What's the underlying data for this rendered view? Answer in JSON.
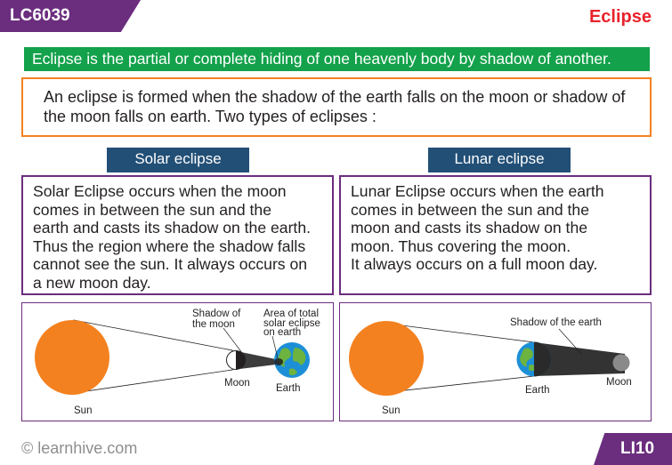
{
  "header": {
    "code": "LC6039",
    "topic": "Eclipse"
  },
  "definition": "Eclipse is the partial or complete hiding of one heavenly body by shadow of another.",
  "intro": "An eclipse is formed when the shadow of the earth falls on the moon or shadow of the moon falls on earth. Two types of eclipses :",
  "solar": {
    "title": "Solar eclipse",
    "text": "Solar Eclipse occurs when the moon\ncomes in between the sun and the\nearth and casts its shadow on the earth.\nThus the region where the shadow falls\ncannot see the sun. It always occurs on\na new moon day.",
    "diagram": {
      "sun": "Sun",
      "moon": "Moon",
      "earth": "Earth",
      "shadow_line1": "Shadow of",
      "shadow_line2": "the moon",
      "area_line1": "Area of total",
      "area_line2": "solar eclipse",
      "area_line3": "on earth"
    }
  },
  "lunar": {
    "title": "Lunar eclipse",
    "text": "Lunar Eclipse occurs when the earth\ncomes in between the sun and the\nmoon and casts its shadow on the\nmoon. Thus covering the moon.\nIt always occurs on a full moon day.",
    "diagram": {
      "sun": "Sun",
      "moon": "Moon",
      "earth": "Earth",
      "shadow": "Shadow of the earth"
    }
  },
  "footer": {
    "copyright": "© learnhive.com",
    "page": "LI10"
  },
  "colors": {
    "purple": "#6b2d7e",
    "green": "#13a14b",
    "orange": "#f4811f",
    "navy": "#224f76",
    "red": "#e8232c",
    "sun": "#f4811f"
  }
}
